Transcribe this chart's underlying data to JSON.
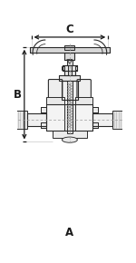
{
  "bg_color": "#ffffff",
  "line_color": "#2a2a2a",
  "dim_color": "#1a1a1a",
  "fig_width": 1.5,
  "fig_height": 2.9,
  "dpi": 100,
  "dim_A_label": "A",
  "dim_B_label": "B",
  "dim_C_label": "C",
  "font_size": 8.5
}
